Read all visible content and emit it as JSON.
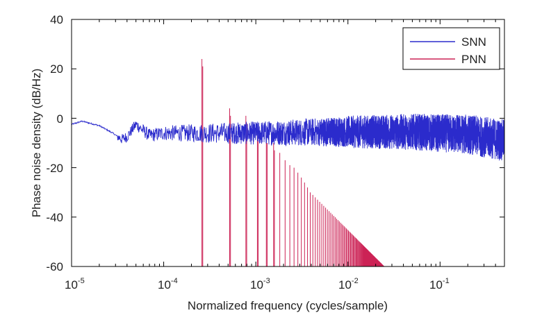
{
  "chart_data": {
    "type": "line",
    "title": "",
    "xlabel": "Normalized frequency (cycles/sample)",
    "ylabel": "Phase noise density (dB/Hz)",
    "xscale": "log",
    "xlim": [
      1e-05,
      0.5
    ],
    "ylim": [
      -60,
      40
    ],
    "grid": false,
    "legend_position": "top-right",
    "x_ticks": [
      {
        "base": "10",
        "exp": "-5",
        "value": 1e-05
      },
      {
        "base": "10",
        "exp": "-4",
        "value": 0.0001
      },
      {
        "base": "10",
        "exp": "-3",
        "value": 0.001
      },
      {
        "base": "10",
        "exp": "-2",
        "value": 0.01
      },
      {
        "base": "10",
        "exp": "-1",
        "value": 0.1
      }
    ],
    "y_ticks": [
      "40",
      "20",
      "0",
      "-20",
      "-40",
      "-60"
    ],
    "series": [
      {
        "name": "SNN",
        "color": "#2b2bcc",
        "description_points": [
          [
            1e-05,
            -2.5
          ],
          [
            1.3e-05,
            -1.2
          ],
          [
            2e-05,
            -3
          ],
          [
            2.8e-05,
            -6
          ],
          [
            3.5e-05,
            -8.5
          ],
          [
            4e-05,
            -7.5
          ],
          [
            5e-05,
            -2.5
          ],
          [
            7e-05,
            -7
          ],
          [
            0.0001,
            -6
          ],
          [
            0.0002,
            -6
          ],
          [
            0.001,
            -6
          ],
          [
            0.005,
            -5.5
          ],
          [
            0.05,
            -5.5
          ],
          [
            0.2,
            -6.5
          ],
          [
            0.5,
            -9
          ]
        ]
      },
      {
        "name": "PNN",
        "color": "#cc2255",
        "harmonic_base": 0.00026,
        "spur_peaks_dB": [
          24,
          4,
          1,
          -4,
          -7,
          -10,
          -14,
          -17,
          -19,
          -20,
          -22,
          -24,
          -26,
          -28,
          -30
        ]
      }
    ]
  }
}
